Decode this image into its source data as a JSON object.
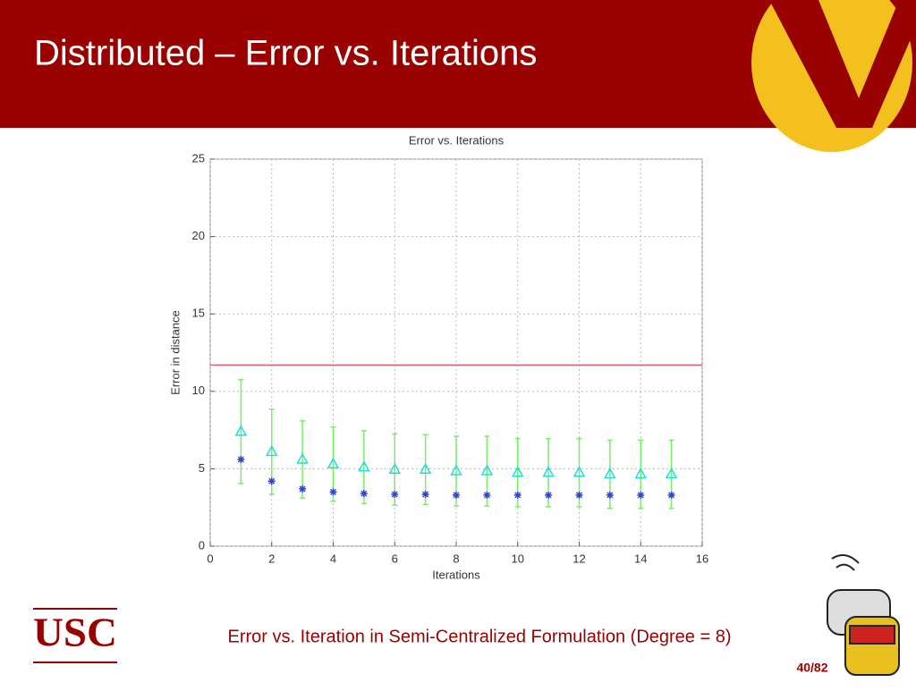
{
  "slide": {
    "title": "Distributed – Error vs. Iterations",
    "logo": "USC",
    "caption": "Error vs. Iteration in Semi-Centralized Formulation (Degree = 8)",
    "page": "40/82"
  },
  "chart_data": {
    "type": "scatter",
    "title": "Error vs. Iterations",
    "x_label": "Iterations",
    "y_label": "Error in distance",
    "x": [
      1,
      2,
      3,
      4,
      5,
      6,
      7,
      8,
      9,
      10,
      11,
      12,
      13,
      14,
      15
    ],
    "series": [
      {
        "marker": "triangle",
        "color": "#22dddd",
        "error_color": "#77ee66",
        "values": [
          7.4,
          6.1,
          5.6,
          5.3,
          5.1,
          4.95,
          4.95,
          4.85,
          4.85,
          4.75,
          4.75,
          4.75,
          4.65,
          4.65,
          4.65
        ],
        "errors": [
          3.35,
          2.75,
          2.5,
          2.4,
          2.35,
          2.3,
          2.25,
          2.25,
          2.25,
          2.2,
          2.2,
          2.2,
          2.2,
          2.2,
          2.2
        ]
      },
      {
        "marker": "asterisk",
        "color": "#3344cc",
        "values": [
          5.6,
          4.2,
          3.7,
          3.5,
          3.4,
          3.35,
          3.35,
          3.3,
          3.3,
          3.3,
          3.3,
          3.3,
          3.3,
          3.3,
          3.3
        ]
      }
    ],
    "hline": {
      "value": 11.7,
      "color": "#e06060"
    },
    "xlim": [
      0,
      16
    ],
    "xticks": [
      0,
      2,
      4,
      6,
      8,
      10,
      12,
      14,
      16
    ],
    "ylim": [
      0,
      25
    ],
    "yticks": [
      0,
      5,
      10,
      15,
      20,
      25
    ],
    "grid": true
  }
}
